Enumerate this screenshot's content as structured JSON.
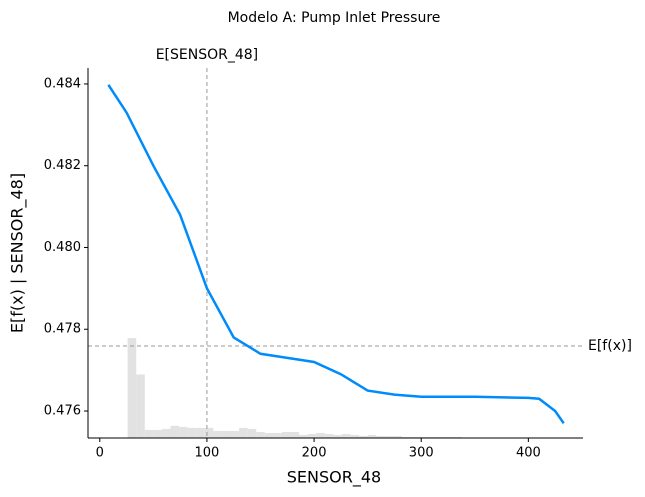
{
  "chart_data": {
    "type": "line",
    "title": "Modelo A: Pump Inlet Pressure",
    "xlabel": "SENSOR_48",
    "ylabel": "E[f(x) | SENSOR_48]",
    "x": [
      8,
      25,
      50,
      75,
      100,
      125,
      150,
      175,
      200,
      225,
      250,
      275,
      300,
      350,
      400,
      410,
      425,
      433
    ],
    "values": [
      0.48398,
      0.4833,
      0.482,
      0.4808,
      0.479,
      0.4778,
      0.4774,
      0.4773,
      0.4772,
      0.4769,
      0.4765,
      0.4764,
      0.47635,
      0.47635,
      0.47632,
      0.4763,
      0.476,
      0.4757
    ],
    "color": "#008bfb",
    "histogram": {
      "color": "#e2e2e2",
      "bins": [
        26,
        34,
        42,
        50,
        58,
        66,
        74,
        82,
        90,
        98,
        106,
        114,
        122,
        130,
        138,
        146,
        154,
        162,
        170,
        178,
        186,
        194,
        202,
        210,
        218,
        226,
        234,
        242,
        250,
        258,
        266,
        274,
        282,
        290,
        298,
        306,
        314,
        322,
        330,
        338
      ],
      "counts": [
        99,
        63,
        8,
        8,
        9,
        12,
        11,
        10,
        10,
        10,
        7,
        7,
        7,
        10,
        9,
        6,
        5,
        5,
        6,
        6,
        3,
        4,
        5,
        4,
        3,
        4,
        3,
        2,
        3,
        2,
        2,
        2,
        1,
        1,
        1,
        1,
        1,
        1,
        1
      ]
    },
    "vline": {
      "value": 100,
      "label": "E[SENSOR_48]"
    },
    "hline": {
      "value": 0.47759,
      "label": "E[f(x)]"
    },
    "xlim": [
      -11,
      451
    ],
    "ylim": [
      0.47534,
      0.48439
    ],
    "xticks": [
      0,
      100,
      200,
      300,
      400
    ],
    "yticks": [
      0.476,
      0.478,
      {
        "value": 0.48,
        "label": "0.480"
      },
      0.482,
      0.484
    ]
  }
}
